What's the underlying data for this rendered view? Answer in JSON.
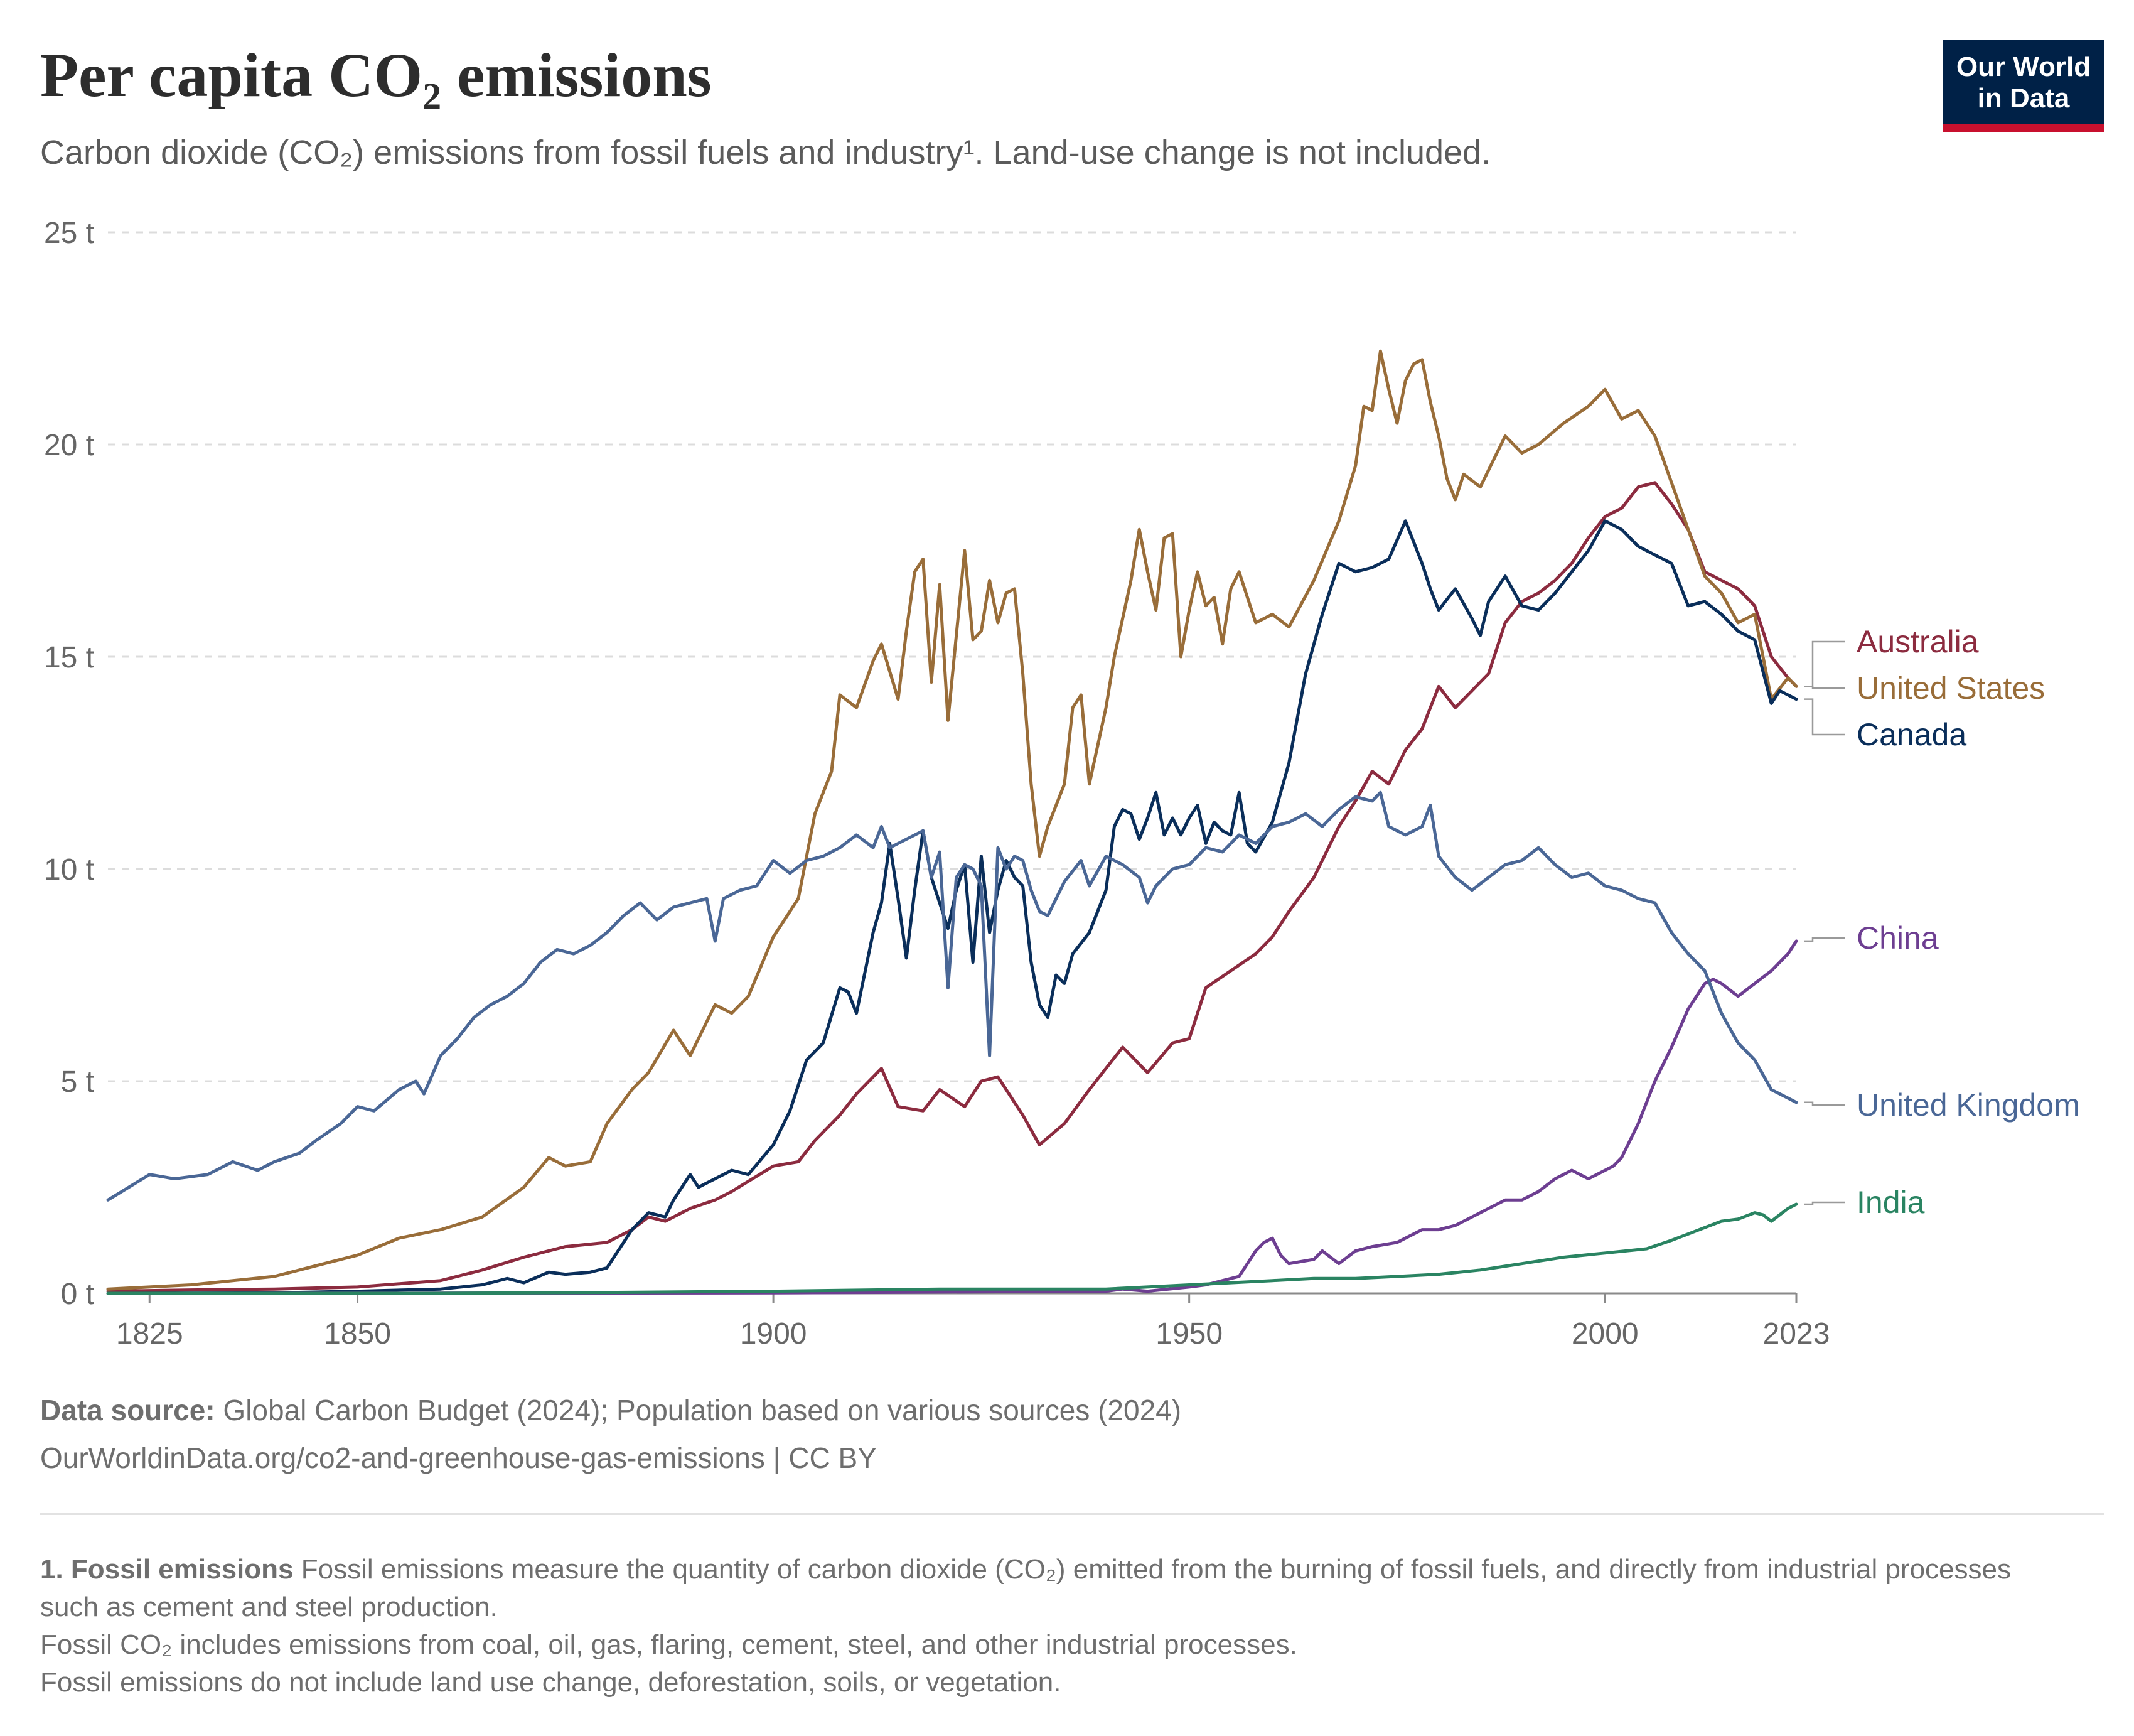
{
  "title": "Per capita CO₂ emissions",
  "subtitle": "Carbon dioxide (CO₂) emissions from fossil fuels and industry¹. Land-use change is not included.",
  "logo": {
    "line1": "Our World",
    "line2": "in Data"
  },
  "source": {
    "label": "Data source:",
    "text": " Global Carbon Budget (2024); Population based on various sources (2024)",
    "link": "OurWorldinData.org/co2-and-greenhouse-gas-emissions | CC BY"
  },
  "footnote": {
    "label": "1. Fossil emissions",
    "text": " Fossil emissions measure the quantity of carbon dioxide (CO₂) emitted from the burning of fossil fuels, and directly from industrial processes such as cement and steel production.",
    "line2": "Fossil CO₂ includes emissions from coal, oil, gas, flaring, cement, steel, and other industrial processes.",
    "line3": "Fossil emissions do not include land use change, deforestation, soils, or vegetation."
  },
  "chart_data": {
    "type": "line",
    "title": "Per capita CO₂ emissions",
    "xlim": [
      1820,
      2023
    ],
    "ylim": [
      0,
      25
    ],
    "y_unit": "t",
    "yticks": [
      0,
      5,
      10,
      15,
      20,
      25
    ],
    "ytick_labels": [
      "0 t",
      "5 t",
      "10 t",
      "15 t",
      "20 t",
      "25 t"
    ],
    "xticks": [
      1825,
      1850,
      1900,
      1950,
      2000,
      2023
    ],
    "xtick_labels": [
      "1825",
      "1850",
      "1900",
      "1950",
      "2000",
      "2023"
    ],
    "grid": "horizontal dashed",
    "legend": "right, labels at line ends",
    "series": [
      {
        "name": "Australia",
        "color": "#8c2b3f",
        "x": [
          1820,
          1830,
          1840,
          1850,
          1860,
          1865,
          1870,
          1875,
          1880,
          1883,
          1885,
          1887,
          1890,
          1893,
          1895,
          1900,
          1903,
          1905,
          1908,
          1910,
          1913,
          1915,
          1918,
          1920,
          1923,
          1925,
          1927,
          1930,
          1932,
          1935,
          1938,
          1940,
          1942,
          1945,
          1948,
          1950,
          1952,
          1955,
          1958,
          1960,
          1962,
          1965,
          1968,
          1970,
          1972,
          1974,
          1976,
          1978,
          1980,
          1982,
          1984,
          1986,
          1988,
          1990,
          1992,
          1994,
          1996,
          1998,
          2000,
          2002,
          2004,
          2006,
          2008,
          2010,
          2012,
          2014,
          2016,
          2018,
          2020,
          2022,
          2023
        ],
        "y": [
          0.05,
          0.08,
          0.1,
          0.15,
          0.3,
          0.55,
          0.85,
          1.1,
          1.2,
          1.5,
          1.8,
          1.7,
          2.0,
          2.2,
          2.4,
          3.0,
          3.1,
          3.6,
          4.2,
          4.7,
          5.3,
          4.4,
          4.3,
          4.8,
          4.4,
          5.0,
          5.1,
          4.2,
          3.5,
          4.0,
          4.8,
          5.3,
          5.8,
          5.2,
          5.9,
          6.0,
          7.2,
          7.6,
          8.0,
          8.4,
          9.0,
          9.8,
          11.0,
          11.6,
          12.3,
          12.0,
          12.8,
          13.3,
          14.3,
          13.8,
          14.2,
          14.6,
          15.8,
          16.3,
          16.5,
          16.8,
          17.2,
          17.8,
          18.3,
          18.5,
          19.0,
          19.1,
          18.6,
          18.0,
          17.0,
          16.8,
          16.6,
          16.2,
          15.0,
          14.5,
          14.3
        ]
      },
      {
        "name": "United States",
        "color": "#996d39",
        "x": [
          1820,
          1830,
          1840,
          1850,
          1855,
          1860,
          1865,
          1870,
          1873,
          1875,
          1878,
          1880,
          1883,
          1885,
          1888,
          1890,
          1893,
          1895,
          1897,
          1900,
          1903,
          1905,
          1907,
          1908,
          1910,
          1912,
          1913,
          1915,
          1916,
          1917,
          1918,
          1919,
          1920,
          1921,
          1923,
          1924,
          1925,
          1926,
          1927,
          1928,
          1929,
          1930,
          1931,
          1932,
          1933,
          1935,
          1936,
          1937,
          1938,
          1940,
          1941,
          1943,
          1944,
          1945,
          1946,
          1947,
          1948,
          1949,
          1950,
          1951,
          1952,
          1953,
          1954,
          1955,
          1956,
          1957,
          1958,
          1960,
          1962,
          1965,
          1968,
          1970,
          1971,
          1972,
          1973,
          1974,
          1975,
          1976,
          1977,
          1978,
          1979,
          1980,
          1981,
          1982,
          1983,
          1985,
          1988,
          1990,
          1992,
          1995,
          1998,
          2000,
          2002,
          2004,
          2006,
          2008,
          2010,
          2012,
          2014,
          2016,
          2018,
          2020,
          2022,
          2023
        ],
        "y": [
          0.1,
          0.2,
          0.4,
          0.9,
          1.3,
          1.5,
          1.8,
          2.5,
          3.2,
          3.0,
          3.1,
          4.0,
          4.8,
          5.2,
          6.2,
          5.6,
          6.8,
          6.6,
          7.0,
          8.4,
          9.3,
          11.3,
          12.3,
          14.1,
          13.8,
          14.9,
          15.3,
          14.0,
          15.6,
          17.0,
          17.3,
          14.4,
          16.7,
          13.5,
          17.5,
          15.4,
          15.6,
          16.8,
          15.8,
          16.5,
          16.6,
          14.6,
          12.0,
          10.3,
          11.0,
          12.0,
          13.8,
          14.1,
          12.0,
          13.8,
          15.0,
          16.8,
          18.0,
          17.0,
          16.1,
          17.8,
          17.9,
          15.0,
          16.1,
          17.0,
          16.2,
          16.4,
          15.3,
          16.6,
          17.0,
          16.4,
          15.8,
          16.0,
          15.7,
          16.8,
          18.2,
          19.5,
          20.9,
          20.8,
          22.2,
          21.3,
          20.5,
          21.5,
          21.9,
          22.0,
          21.0,
          20.2,
          19.2,
          18.7,
          19.3,
          19.0,
          20.2,
          19.8,
          20.0,
          20.5,
          20.9,
          21.3,
          20.6,
          20.8,
          20.2,
          19.1,
          18.0,
          16.9,
          16.5,
          15.8,
          16.0,
          14.0,
          14.5,
          14.3
        ]
      },
      {
        "name": "Canada",
        "color": "#0a2e5a",
        "x": [
          1820,
          1840,
          1850,
          1860,
          1865,
          1868,
          1870,
          1873,
          1875,
          1878,
          1880,
          1883,
          1885,
          1887,
          1888,
          1890,
          1891,
          1893,
          1895,
          1897,
          1900,
          1902,
          1904,
          1906,
          1908,
          1909,
          1910,
          1912,
          1913,
          1914,
          1915,
          1916,
          1917,
          1918,
          1919,
          1920,
          1921,
          1922,
          1923,
          1924,
          1925,
          1926,
          1927,
          1928,
          1929,
          1930,
          1931,
          1932,
          1933,
          1934,
          1935,
          1936,
          1938,
          1940,
          1941,
          1942,
          1943,
          1944,
          1945,
          1946,
          1947,
          1948,
          1949,
          1950,
          1951,
          1952,
          1953,
          1954,
          1955,
          1956,
          1957,
          1958,
          1960,
          1962,
          1964,
          1966,
          1968,
          1970,
          1972,
          1974,
          1976,
          1978,
          1979,
          1980,
          1982,
          1984,
          1985,
          1986,
          1988,
          1990,
          1992,
          1994,
          1996,
          1998,
          2000,
          2002,
          2004,
          2006,
          2008,
          2010,
          2012,
          2014,
          2016,
          2018,
          2020,
          2021,
          2022,
          2023
        ],
        "y": [
          0.0,
          0.01,
          0.05,
          0.1,
          0.2,
          0.35,
          0.25,
          0.5,
          0.45,
          0.5,
          0.6,
          1.5,
          1.9,
          1.8,
          2.2,
          2.8,
          2.5,
          2.7,
          2.9,
          2.8,
          3.5,
          4.3,
          5.5,
          5.9,
          7.2,
          7.1,
          6.6,
          8.5,
          9.2,
          10.6,
          9.3,
          7.9,
          9.5,
          10.9,
          9.8,
          9.2,
          8.6,
          9.5,
          10.1,
          7.8,
          10.3,
          8.5,
          9.5,
          10.2,
          9.8,
          9.6,
          7.8,
          6.8,
          6.5,
          7.5,
          7.3,
          8.0,
          8.5,
          9.5,
          11.0,
          11.4,
          11.3,
          10.7,
          11.2,
          11.8,
          10.8,
          11.2,
          10.8,
          11.2,
          11.5,
          10.6,
          11.1,
          10.9,
          10.8,
          11.8,
          10.6,
          10.4,
          11.1,
          12.5,
          14.6,
          16.0,
          17.2,
          17.0,
          17.1,
          17.3,
          18.2,
          17.2,
          16.6,
          16.1,
          16.6,
          15.9,
          15.5,
          16.3,
          16.9,
          16.2,
          16.1,
          16.5,
          17.0,
          17.5,
          18.2,
          18.0,
          17.6,
          17.4,
          17.2,
          16.2,
          16.3,
          16.0,
          15.6,
          15.4,
          13.9,
          14.2,
          14.1,
          14.0
        ]
      },
      {
        "name": "China",
        "color": "#6d3e91",
        "x": [
          1820,
          1900,
          1940,
          1942,
          1945,
          1950,
          1952,
          1954,
          1956,
          1958,
          1959,
          1960,
          1961,
          1962,
          1965,
          1966,
          1968,
          1970,
          1972,
          1975,
          1978,
          1980,
          1982,
          1984,
          1986,
          1988,
          1990,
          1992,
          1994,
          1996,
          1998,
          2000,
          2001,
          2002,
          2004,
          2006,
          2008,
          2010,
          2012,
          2013,
          2014,
          2016,
          2018,
          2020,
          2022,
          2023
        ],
        "y": [
          0.0,
          0.01,
          0.05,
          0.1,
          0.05,
          0.15,
          0.2,
          0.3,
          0.4,
          1.0,
          1.2,
          1.3,
          0.9,
          0.7,
          0.8,
          1.0,
          0.7,
          1.0,
          1.1,
          1.2,
          1.5,
          1.5,
          1.6,
          1.8,
          2.0,
          2.2,
          2.2,
          2.4,
          2.7,
          2.9,
          2.7,
          2.9,
          3.0,
          3.2,
          4.0,
          5.0,
          5.8,
          6.7,
          7.3,
          7.4,
          7.3,
          7.0,
          7.3,
          7.6,
          8.0,
          8.3
        ]
      },
      {
        "name": "United Kingdom",
        "color": "#4a6796",
        "x": [
          1820,
          1825,
          1828,
          1832,
          1835,
          1838,
          1840,
          1843,
          1845,
          1848,
          1850,
          1852,
          1855,
          1857,
          1858,
          1860,
          1862,
          1864,
          1866,
          1868,
          1870,
          1872,
          1874,
          1876,
          1878,
          1880,
          1882,
          1884,
          1886,
          1888,
          1890,
          1892,
          1893,
          1894,
          1896,
          1898,
          1900,
          1902,
          1904,
          1906,
          1908,
          1910,
          1912,
          1913,
          1914,
          1916,
          1918,
          1919,
          1920,
          1921,
          1922,
          1923,
          1924,
          1925,
          1926,
          1927,
          1928,
          1929,
          1930,
          1931,
          1932,
          1933,
          1935,
          1937,
          1938,
          1940,
          1942,
          1944,
          1945,
          1946,
          1948,
          1950,
          1952,
          1954,
          1956,
          1958,
          1960,
          1962,
          1964,
          1966,
          1968,
          1970,
          1972,
          1973,
          1974,
          1976,
          1978,
          1979,
          1980,
          1982,
          1984,
          1986,
          1988,
          1990,
          1992,
          1994,
          1996,
          1998,
          2000,
          2002,
          2004,
          2006,
          2008,
          2010,
          2012,
          2014,
          2016,
          2018,
          2020,
          2022,
          2023
        ],
        "y": [
          2.2,
          2.8,
          2.7,
          2.8,
          3.1,
          2.9,
          3.1,
          3.3,
          3.6,
          4.0,
          4.4,
          4.3,
          4.8,
          5.0,
          4.7,
          5.6,
          6.0,
          6.5,
          6.8,
          7.0,
          7.3,
          7.8,
          8.1,
          8.0,
          8.2,
          8.5,
          8.9,
          9.2,
          8.8,
          9.1,
          9.2,
          9.3,
          8.3,
          9.3,
          9.5,
          9.6,
          10.2,
          9.9,
          10.2,
          10.3,
          10.5,
          10.8,
          10.5,
          11.0,
          10.5,
          10.7,
          10.9,
          9.8,
          10.4,
          7.2,
          9.8,
          10.1,
          10.0,
          9.6,
          5.6,
          10.5,
          10.0,
          10.3,
          10.2,
          9.5,
          9.0,
          8.9,
          9.7,
          10.2,
          9.6,
          10.3,
          10.1,
          9.8,
          9.2,
          9.6,
          10.0,
          10.1,
          10.5,
          10.4,
          10.8,
          10.6,
          11.0,
          11.1,
          11.3,
          11.0,
          11.4,
          11.7,
          11.6,
          11.8,
          11.0,
          10.8,
          11.0,
          11.5,
          10.3,
          9.8,
          9.5,
          9.8,
          10.1,
          10.2,
          10.5,
          10.1,
          9.8,
          9.9,
          9.6,
          9.5,
          9.3,
          9.2,
          8.5,
          8.0,
          7.6,
          6.6,
          5.9,
          5.5,
          4.8,
          4.6,
          4.5
        ]
      },
      {
        "name": "India",
        "color": "#2a8462",
        "x": [
          1820,
          1860,
          1880,
          1900,
          1920,
          1940,
          1950,
          1955,
          1960,
          1965,
          1970,
          1975,
          1980,
          1985,
          1990,
          1995,
          2000,
          2005,
          2008,
          2010,
          2012,
          2014,
          2016,
          2018,
          2019,
          2020,
          2021,
          2022,
          2023
        ],
        "y": [
          0.0,
          0.0,
          0.02,
          0.05,
          0.1,
          0.1,
          0.2,
          0.25,
          0.3,
          0.35,
          0.35,
          0.4,
          0.45,
          0.55,
          0.7,
          0.85,
          0.95,
          1.05,
          1.25,
          1.4,
          1.55,
          1.7,
          1.75,
          1.9,
          1.85,
          1.7,
          1.85,
          2.0,
          2.1
        ]
      }
    ]
  }
}
